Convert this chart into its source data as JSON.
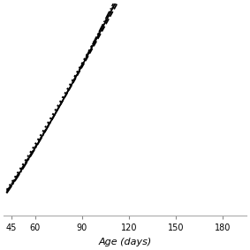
{
  "title": "",
  "xlabel": "Age (days)",
  "ylabel": "",
  "xlim": [
    40,
    195
  ],
  "ylim": [
    0,
    45
  ],
  "xticks": [
    45,
    60,
    90,
    120,
    150,
    180
  ],
  "background_color": "#ffffff",
  "line_color": "#000000",
  "x_start": 42,
  "x_end": 190,
  "curves": [
    {
      "a": 0.0,
      "b": 0.18,
      "c": 8e-05,
      "style": "-",
      "lw": 1.2
    },
    {
      "a": 0.0,
      "b": 0.17,
      "c": 0.0001,
      "style": "--",
      "lw": 1.2
    },
    {
      "a": 0.5,
      "b": 0.155,
      "c": 0.00012,
      "style": ":",
      "lw": 1.4
    },
    {
      "a": 0.0,
      "b": 0.185,
      "c": 6e-05,
      "style": "-.",
      "lw": 1.0
    }
  ]
}
